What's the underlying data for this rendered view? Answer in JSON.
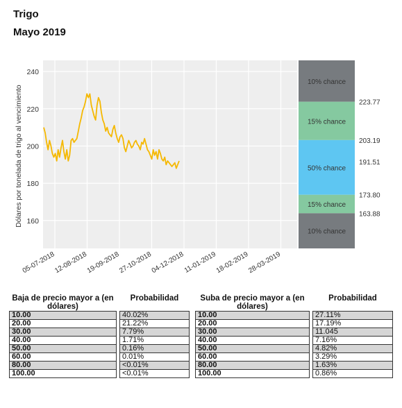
{
  "header": {
    "title": "Trigo",
    "subtitle": "Mayo 2019"
  },
  "colors": {
    "line": "#f5b800",
    "band_gray": "#777b7f",
    "band_green": "#85c9a0",
    "band_blue": "#5ec6f2",
    "plot_bg": "#eeeeee",
    "shade_row": "#d6d6d6"
  },
  "chart_data": {
    "type": "line",
    "ylabel": "Dólares por tonelada de trigo al vencimiento",
    "ylim": [
      145,
      246
    ],
    "yticks": [
      160,
      180,
      200,
      220,
      240
    ],
    "xticks": [
      "05-07-2018",
      "12-08-2018",
      "19-09-2018",
      "27-10-2018",
      "04-12-2018",
      "11-01-2019",
      "18-02-2019",
      "28-03-2019"
    ],
    "grid": true,
    "series": [
      {
        "values": [
          210,
          207,
          202,
          198,
          203,
          200,
          196,
          194,
          196,
          192,
          198,
          194,
          199,
          203,
          197,
          193,
          198,
          192,
          195,
          203,
          204,
          202,
          203,
          204,
          208,
          212,
          215,
          219,
          221,
          224,
          228,
          226,
          228,
          222,
          219,
          216,
          214,
          222,
          226,
          224,
          218,
          214,
          212,
          208,
          210,
          207,
          206,
          205,
          209,
          211,
          207,
          204,
          202,
          205,
          206,
          204,
          199,
          197,
          200,
          203,
          201,
          199,
          200,
          202,
          203,
          201,
          200,
          198,
          202,
          201,
          204,
          201,
          198,
          197,
          195,
          193,
          198,
          195,
          197,
          193,
          198,
          196,
          193,
          192,
          194,
          190,
          192,
          191,
          190,
          189,
          190,
          191,
          188,
          190,
          192
        ]
      }
    ],
    "probability_bands": [
      {
        "label": "10% chance",
        "from": 223.77,
        "to": 246
      },
      {
        "label": "15% chance",
        "from": 203.19,
        "to": 223.77
      },
      {
        "label": "50% chance",
        "from": 173.8,
        "to": 203.19
      },
      {
        "label": "15% chance",
        "from": 163.88,
        "to": 173.8
      },
      {
        "label": "10% chance",
        "from": 145,
        "to": 163.88
      }
    ],
    "band_boundary_labels": [
      "223.77",
      "203.19",
      "191.51",
      "173.80",
      "163.88"
    ],
    "band_boundary_values": [
      223.77,
      203.19,
      191.51,
      173.8,
      163.88
    ]
  },
  "tables": {
    "left": {
      "header_col1": "Baja de precio mayor a (en dólares)",
      "header_col2": "Probabilidad",
      "rows": [
        {
          "level": "10.00",
          "prob": "40.02%"
        },
        {
          "level": "20.00",
          "prob": "21.22%"
        },
        {
          "level": "30.00",
          "prob": "7.79%"
        },
        {
          "level": "40.00",
          "prob": "1.71%"
        },
        {
          "level": "50.00",
          "prob": "0.16%"
        },
        {
          "level": "60.00",
          "prob": "0.01%"
        },
        {
          "level": "80.00",
          "prob": "<0.01%"
        },
        {
          "level": "100.00",
          "prob": "<0.01%"
        }
      ]
    },
    "right": {
      "header_col1": "Suba de precio mayor a (en dólares)",
      "header_col2": "Probabilidad",
      "rows": [
        {
          "level": "10.00",
          "prob": "27.11%"
        },
        {
          "level": "20.00",
          "prob": "17.19%"
        },
        {
          "level": "30.00",
          "prob": "11.045"
        },
        {
          "level": "40.00",
          "prob": "7.16%"
        },
        {
          "level": "50.00",
          "prob": "4.82%"
        },
        {
          "level": "60.00",
          "prob": "3.29%"
        },
        {
          "level": "80.00",
          "prob": "1.63%"
        },
        {
          "level": "100.00",
          "prob": "0.86%"
        }
      ]
    }
  }
}
